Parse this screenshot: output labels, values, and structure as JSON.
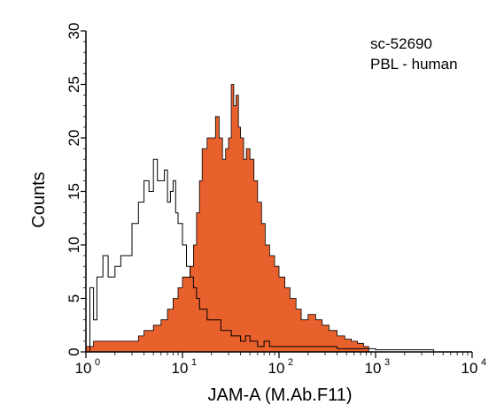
{
  "chart_data": {
    "type": "area",
    "title": "",
    "xlabel": "JAM-A (M.Ab.F11)",
    "ylabel": "Counts",
    "x_scale": "log",
    "xlim": [
      1,
      10000
    ],
    "ylim": [
      0,
      30
    ],
    "x_ticks": [
      {
        "base": "10",
        "exp": "0",
        "value": 1
      },
      {
        "base": "10",
        "exp": "1",
        "value": 10
      },
      {
        "base": "10",
        "exp": "2",
        "value": 100
      },
      {
        "base": "10",
        "exp": "3",
        "value": 1000
      },
      {
        "base": "10",
        "exp": "4",
        "value": 10000
      }
    ],
    "y_ticks": [
      0,
      5,
      10,
      15,
      20,
      25,
      30
    ],
    "grid": false,
    "annotations": [
      "sc-52690",
      "PBL - human"
    ],
    "series": [
      {
        "style": "outline",
        "color": "#000000",
        "x": [
          1.0,
          1.1,
          1.2,
          1.3,
          1.5,
          1.7,
          2.0,
          2.3,
          2.6,
          3.0,
          3.5,
          4.0,
          4.5,
          5.0,
          5.5,
          6.0,
          6.5,
          7.0,
          7.5,
          8.0,
          8.5,
          9.0,
          10,
          11,
          12,
          13,
          14,
          15,
          16,
          18,
          20,
          22,
          25,
          28,
          32,
          36,
          40,
          45,
          50,
          60,
          70,
          80,
          90,
          100,
          120,
          140,
          170,
          200,
          250,
          300,
          400,
          500,
          700,
          1000,
          1500,
          2000,
          4000
        ],
        "y": [
          0,
          6,
          3,
          7,
          9,
          7,
          8,
          9,
          9,
          12,
          14,
          16,
          15,
          18,
          16,
          16,
          17,
          14,
          15,
          16,
          13,
          12,
          10,
          8,
          7,
          6,
          5,
          4,
          4,
          3,
          3,
          3,
          2,
          2,
          1.5,
          1.5,
          1,
          1.5,
          1,
          0.5,
          1,
          0.5,
          0.5,
          0.5,
          0.5,
          0.5,
          0.5,
          0.5,
          0.5,
          0.5,
          0.3,
          0.3,
          0.3,
          0.2,
          0.2,
          0.2,
          0
        ]
      },
      {
        "style": "filled",
        "color": "#E8602C",
        "x": [
          1.0,
          1.2,
          1.5,
          2.0,
          2.5,
          3.0,
          3.5,
          4.0,
          5.0,
          6.0,
          7.0,
          8.0,
          9.0,
          10,
          11,
          12,
          13,
          14,
          15,
          16,
          18,
          20,
          22,
          24,
          26,
          28,
          30,
          32,
          34,
          36,
          38,
          40,
          43,
          46,
          50,
          55,
          60,
          66,
          72,
          80,
          90,
          100,
          115,
          130,
          150,
          170,
          200,
          240,
          280,
          330,
          400,
          480,
          560,
          650,
          750,
          850
        ],
        "y": [
          0.5,
          1,
          1,
          1,
          1,
          1,
          1.5,
          2,
          2.5,
          3,
          4,
          5,
          6,
          7,
          7,
          8,
          10,
          13,
          16,
          19,
          20,
          20,
          22,
          20,
          18,
          19,
          20,
          25,
          23,
          24,
          21,
          20,
          18,
          19,
          18,
          16,
          14,
          12,
          10,
          9,
          8,
          7,
          6,
          5,
          4,
          3,
          3.5,
          3,
          2.5,
          2,
          1.5,
          1.2,
          1,
          0.8,
          0.5,
          0
        ]
      }
    ]
  }
}
